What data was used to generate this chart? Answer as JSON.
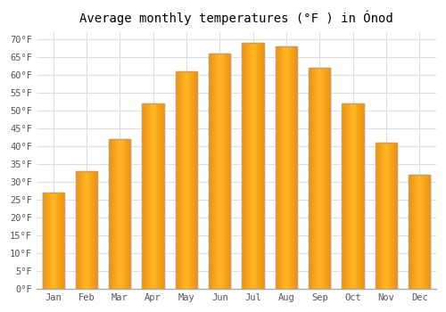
{
  "title": "Average monthly temperatures (°F ) in Ónod",
  "months": [
    "Jan",
    "Feb",
    "Mar",
    "Apr",
    "May",
    "Jun",
    "Jul",
    "Aug",
    "Sep",
    "Oct",
    "Nov",
    "Dec"
  ],
  "values": [
    27,
    33,
    42,
    52,
    61,
    66,
    69,
    68,
    62,
    52,
    41,
    32
  ],
  "bar_color_center": "#FFB726",
  "bar_color_edge": "#F0920A",
  "bar_outline_color": "#B8A080",
  "ylim": [
    0,
    72
  ],
  "yticks": [
    0,
    5,
    10,
    15,
    20,
    25,
    30,
    35,
    40,
    45,
    50,
    55,
    60,
    65,
    70
  ],
  "background_color": "#ffffff",
  "grid_color": "#dddddd",
  "title_fontsize": 10,
  "tick_fontsize": 7.5,
  "font_family": "monospace"
}
